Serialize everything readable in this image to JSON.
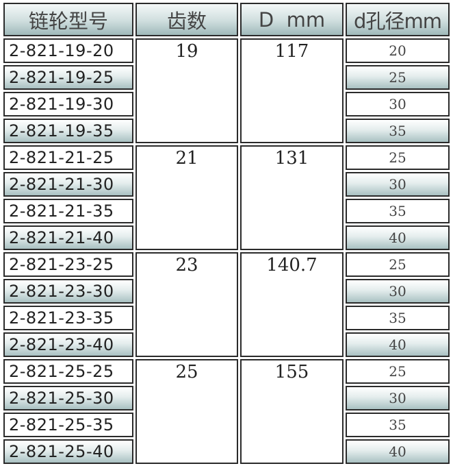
{
  "headers": [
    "链轮型号",
    "齿数",
    "D  mm",
    "d孔径mm"
  ],
  "groups": [
    {
      "teeth": "19",
      "D": "117",
      "rows": [
        {
          "model": "2-821-19-20",
          "bore": "20"
        },
        {
          "model": "2-821-19-25",
          "bore": "25"
        },
        {
          "model": "2-821-19-30",
          "bore": "30"
        },
        {
          "model": "2-821-19-35",
          "bore": "35"
        }
      ]
    },
    {
      "teeth": "21",
      "D": "131",
      "rows": [
        {
          "model": "2-821-21-25",
          "bore": "25"
        },
        {
          "model": "2-821-21-30",
          "bore": "30"
        },
        {
          "model": "2-821-21-35",
          "bore": "35"
        },
        {
          "model": "2-821-21-40",
          "bore": "40"
        }
      ]
    },
    {
      "teeth": "23",
      "D": "140.7",
      "rows": [
        {
          "model": "2-821-23-25",
          "bore": "25"
        },
        {
          "model": "2-821-23-30",
          "bore": "30"
        },
        {
          "model": "2-821-23-35",
          "bore": "35"
        },
        {
          "model": "2-821-23-40",
          "bore": "40"
        }
      ]
    },
    {
      "teeth": "25",
      "D": "155",
      "rows": [
        {
          "model": "2-821-25-25",
          "bore": "25"
        },
        {
          "model": "2-821-25-30",
          "bore": "30"
        },
        {
          "model": "2-821-25-35",
          "bore": "35"
        },
        {
          "model": "2-821-25-40",
          "bore": "40"
        }
      ]
    }
  ],
  "colors": {
    "border": "#2a2a2a",
    "shade": "#a9c1c2"
  }
}
